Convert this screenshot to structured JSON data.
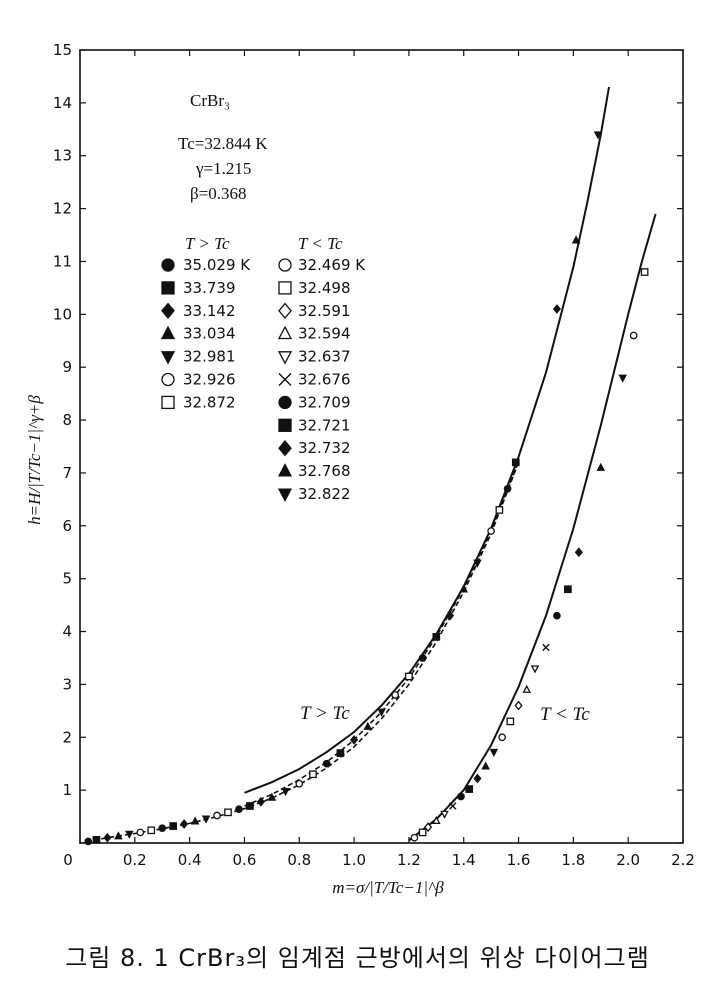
{
  "chart_data": {
    "type": "scatter",
    "xlabel": "m=σ/|T/Tc−1|^β",
    "ylabel": "h=H/|T/Tc−1|^γ+β",
    "xlim": [
      0,
      2.2
    ],
    "ylim": [
      0,
      15
    ],
    "xticks": [
      "0",
      "0.2",
      "0.4",
      "0.6",
      "0.8",
      "1.0",
      "1.2",
      "1.4",
      "1.6",
      "1.8",
      "2.0",
      "2.2"
    ],
    "yticks": [
      "0",
      "1",
      "2",
      "3",
      "4",
      "5",
      "6",
      "7",
      "8",
      "9",
      "10",
      "11",
      "12",
      "13",
      "14",
      "15"
    ],
    "grid": false,
    "info": {
      "material": "CrBr₃",
      "tc": "Tc=32.844 K",
      "gamma": "γ=1.215",
      "beta": "β=0.368"
    },
    "legend": {
      "above_header": "T > Tc",
      "below_header": "T < Tc",
      "above": [
        {
          "marker": "filled-circle",
          "label": "35.029 K"
        },
        {
          "marker": "filled-square",
          "label": "33.739"
        },
        {
          "marker": "filled-diamond",
          "label": "33.142"
        },
        {
          "marker": "filled-triangle-up",
          "label": "33.034"
        },
        {
          "marker": "filled-triangle-down",
          "label": "32.981"
        },
        {
          "marker": "open-circle",
          "label": "32.926"
        },
        {
          "marker": "open-square",
          "label": "32.872"
        }
      ],
      "below": [
        {
          "marker": "open-circle",
          "label": "32.469 K"
        },
        {
          "marker": "open-square",
          "label": "32.498"
        },
        {
          "marker": "open-diamond",
          "label": "32.591"
        },
        {
          "marker": "open-triangle-up",
          "label": "32.594"
        },
        {
          "marker": "open-triangle-down",
          "label": "32.637"
        },
        {
          "marker": "cross",
          "label": "32.676"
        },
        {
          "marker": "filled-circle",
          "label": "32.709"
        },
        {
          "marker": "filled-square",
          "label": "32.721"
        },
        {
          "marker": "filled-diamond",
          "label": "32.732"
        },
        {
          "marker": "filled-triangle-up",
          "label": "32.768"
        },
        {
          "marker": "filled-triangle-down",
          "label": "32.822"
        }
      ]
    },
    "branch_labels": {
      "above": "T > Tc",
      "below": "T < Tc"
    },
    "curves": [
      {
        "branch": "above",
        "style": "solid",
        "x": [
          0.6,
          0.7,
          0.8,
          0.9,
          1.0,
          1.1,
          1.2,
          1.3,
          1.4,
          1.5,
          1.6,
          1.7,
          1.8,
          1.85,
          1.9,
          1.93
        ],
        "y": [
          0.95,
          1.15,
          1.4,
          1.72,
          2.1,
          2.6,
          3.2,
          3.95,
          4.85,
          5.95,
          7.3,
          8.9,
          10.9,
          12.1,
          13.4,
          14.3
        ]
      },
      {
        "branch": "above",
        "style": "dashed",
        "x": [
          0.02,
          0.1,
          0.2,
          0.3,
          0.4,
          0.5,
          0.6,
          0.7,
          0.8,
          0.9,
          1.0,
          1.1,
          1.2,
          1.3,
          1.4,
          1.5,
          1.6
        ],
        "y": [
          0.02,
          0.1,
          0.18,
          0.27,
          0.37,
          0.5,
          0.65,
          0.85,
          1.1,
          1.42,
          1.82,
          2.35,
          3.0,
          3.8,
          4.75,
          5.85,
          7.2
        ]
      },
      {
        "branch": "above",
        "style": "dashed",
        "x": [
          0.6,
          0.7,
          0.8,
          0.9,
          1.0,
          1.1,
          1.2,
          1.3,
          1.4,
          1.5,
          1.6
        ],
        "y": [
          0.7,
          0.92,
          1.2,
          1.53,
          1.95,
          2.48,
          3.12,
          3.9,
          4.82,
          5.9,
          7.22
        ]
      },
      {
        "branch": "below",
        "style": "solid",
        "x": [
          1.2,
          1.3,
          1.4,
          1.5,
          1.6,
          1.7,
          1.8,
          1.9,
          2.0,
          2.05,
          2.1
        ],
        "y": [
          0.05,
          0.45,
          1.0,
          1.85,
          2.95,
          4.3,
          5.95,
          7.9,
          10.0,
          11.0,
          11.9
        ]
      }
    ],
    "points": {
      "above": [
        {
          "x": 0.03,
          "y": 0.03
        },
        {
          "x": 0.06,
          "y": 0.06
        },
        {
          "x": 0.1,
          "y": 0.1
        },
        {
          "x": 0.14,
          "y": 0.13
        },
        {
          "x": 0.18,
          "y": 0.17
        },
        {
          "x": 0.22,
          "y": 0.2
        },
        {
          "x": 0.26,
          "y": 0.24
        },
        {
          "x": 0.3,
          "y": 0.28
        },
        {
          "x": 0.34,
          "y": 0.32
        },
        {
          "x": 0.38,
          "y": 0.36
        },
        {
          "x": 0.42,
          "y": 0.41
        },
        {
          "x": 0.46,
          "y": 0.46
        },
        {
          "x": 0.5,
          "y": 0.52
        },
        {
          "x": 0.54,
          "y": 0.58
        },
        {
          "x": 0.58,
          "y": 0.64
        },
        {
          "x": 0.62,
          "y": 0.7
        },
        {
          "x": 0.66,
          "y": 0.78
        },
        {
          "x": 0.7,
          "y": 0.86
        },
        {
          "x": 0.75,
          "y": 0.98
        },
        {
          "x": 0.8,
          "y": 1.12
        },
        {
          "x": 0.85,
          "y": 1.3
        },
        {
          "x": 0.9,
          "y": 1.5
        },
        {
          "x": 0.95,
          "y": 1.7
        },
        {
          "x": 1.0,
          "y": 1.95
        },
        {
          "x": 1.05,
          "y": 2.2
        },
        {
          "x": 1.1,
          "y": 2.48
        },
        {
          "x": 1.15,
          "y": 2.8
        },
        {
          "x": 1.2,
          "y": 3.15
        },
        {
          "x": 1.25,
          "y": 3.5
        },
        {
          "x": 1.3,
          "y": 3.9
        },
        {
          "x": 1.35,
          "y": 4.3
        },
        {
          "x": 1.4,
          "y": 4.8
        },
        {
          "x": 1.45,
          "y": 5.3
        },
        {
          "x": 1.5,
          "y": 5.9
        },
        {
          "x": 1.53,
          "y": 6.3
        },
        {
          "x": 1.56,
          "y": 6.7
        },
        {
          "x": 1.59,
          "y": 7.2
        },
        {
          "x": 1.74,
          "y": 10.1
        },
        {
          "x": 1.81,
          "y": 11.4
        },
        {
          "x": 1.89,
          "y": 13.4
        }
      ],
      "below": [
        {
          "x": 1.22,
          "y": 0.1
        },
        {
          "x": 1.25,
          "y": 0.2
        },
        {
          "x": 1.27,
          "y": 0.3
        },
        {
          "x": 1.3,
          "y": 0.42
        },
        {
          "x": 1.33,
          "y": 0.55
        },
        {
          "x": 1.36,
          "y": 0.7
        },
        {
          "x": 1.39,
          "y": 0.88
        },
        {
          "x": 1.42,
          "y": 1.02
        },
        {
          "x": 1.45,
          "y": 1.22
        },
        {
          "x": 1.48,
          "y": 1.45
        },
        {
          "x": 1.51,
          "y": 1.72
        },
        {
          "x": 1.54,
          "y": 2.0
        },
        {
          "x": 1.57,
          "y": 2.3
        },
        {
          "x": 1.6,
          "y": 2.6
        },
        {
          "x": 1.63,
          "y": 2.9
        },
        {
          "x": 1.66,
          "y": 3.3
        },
        {
          "x": 1.7,
          "y": 3.7
        },
        {
          "x": 1.74,
          "y": 4.3
        },
        {
          "x": 1.78,
          "y": 4.8
        },
        {
          "x": 1.82,
          "y": 5.5
        },
        {
          "x": 1.9,
          "y": 7.1
        },
        {
          "x": 1.98,
          "y": 8.8
        },
        {
          "x": 2.02,
          "y": 9.6
        },
        {
          "x": 2.06,
          "y": 10.8
        }
      ]
    }
  },
  "caption": "그림 8. 1 CrBr₃의 임계점 근방에서의 위상 다이어그램"
}
